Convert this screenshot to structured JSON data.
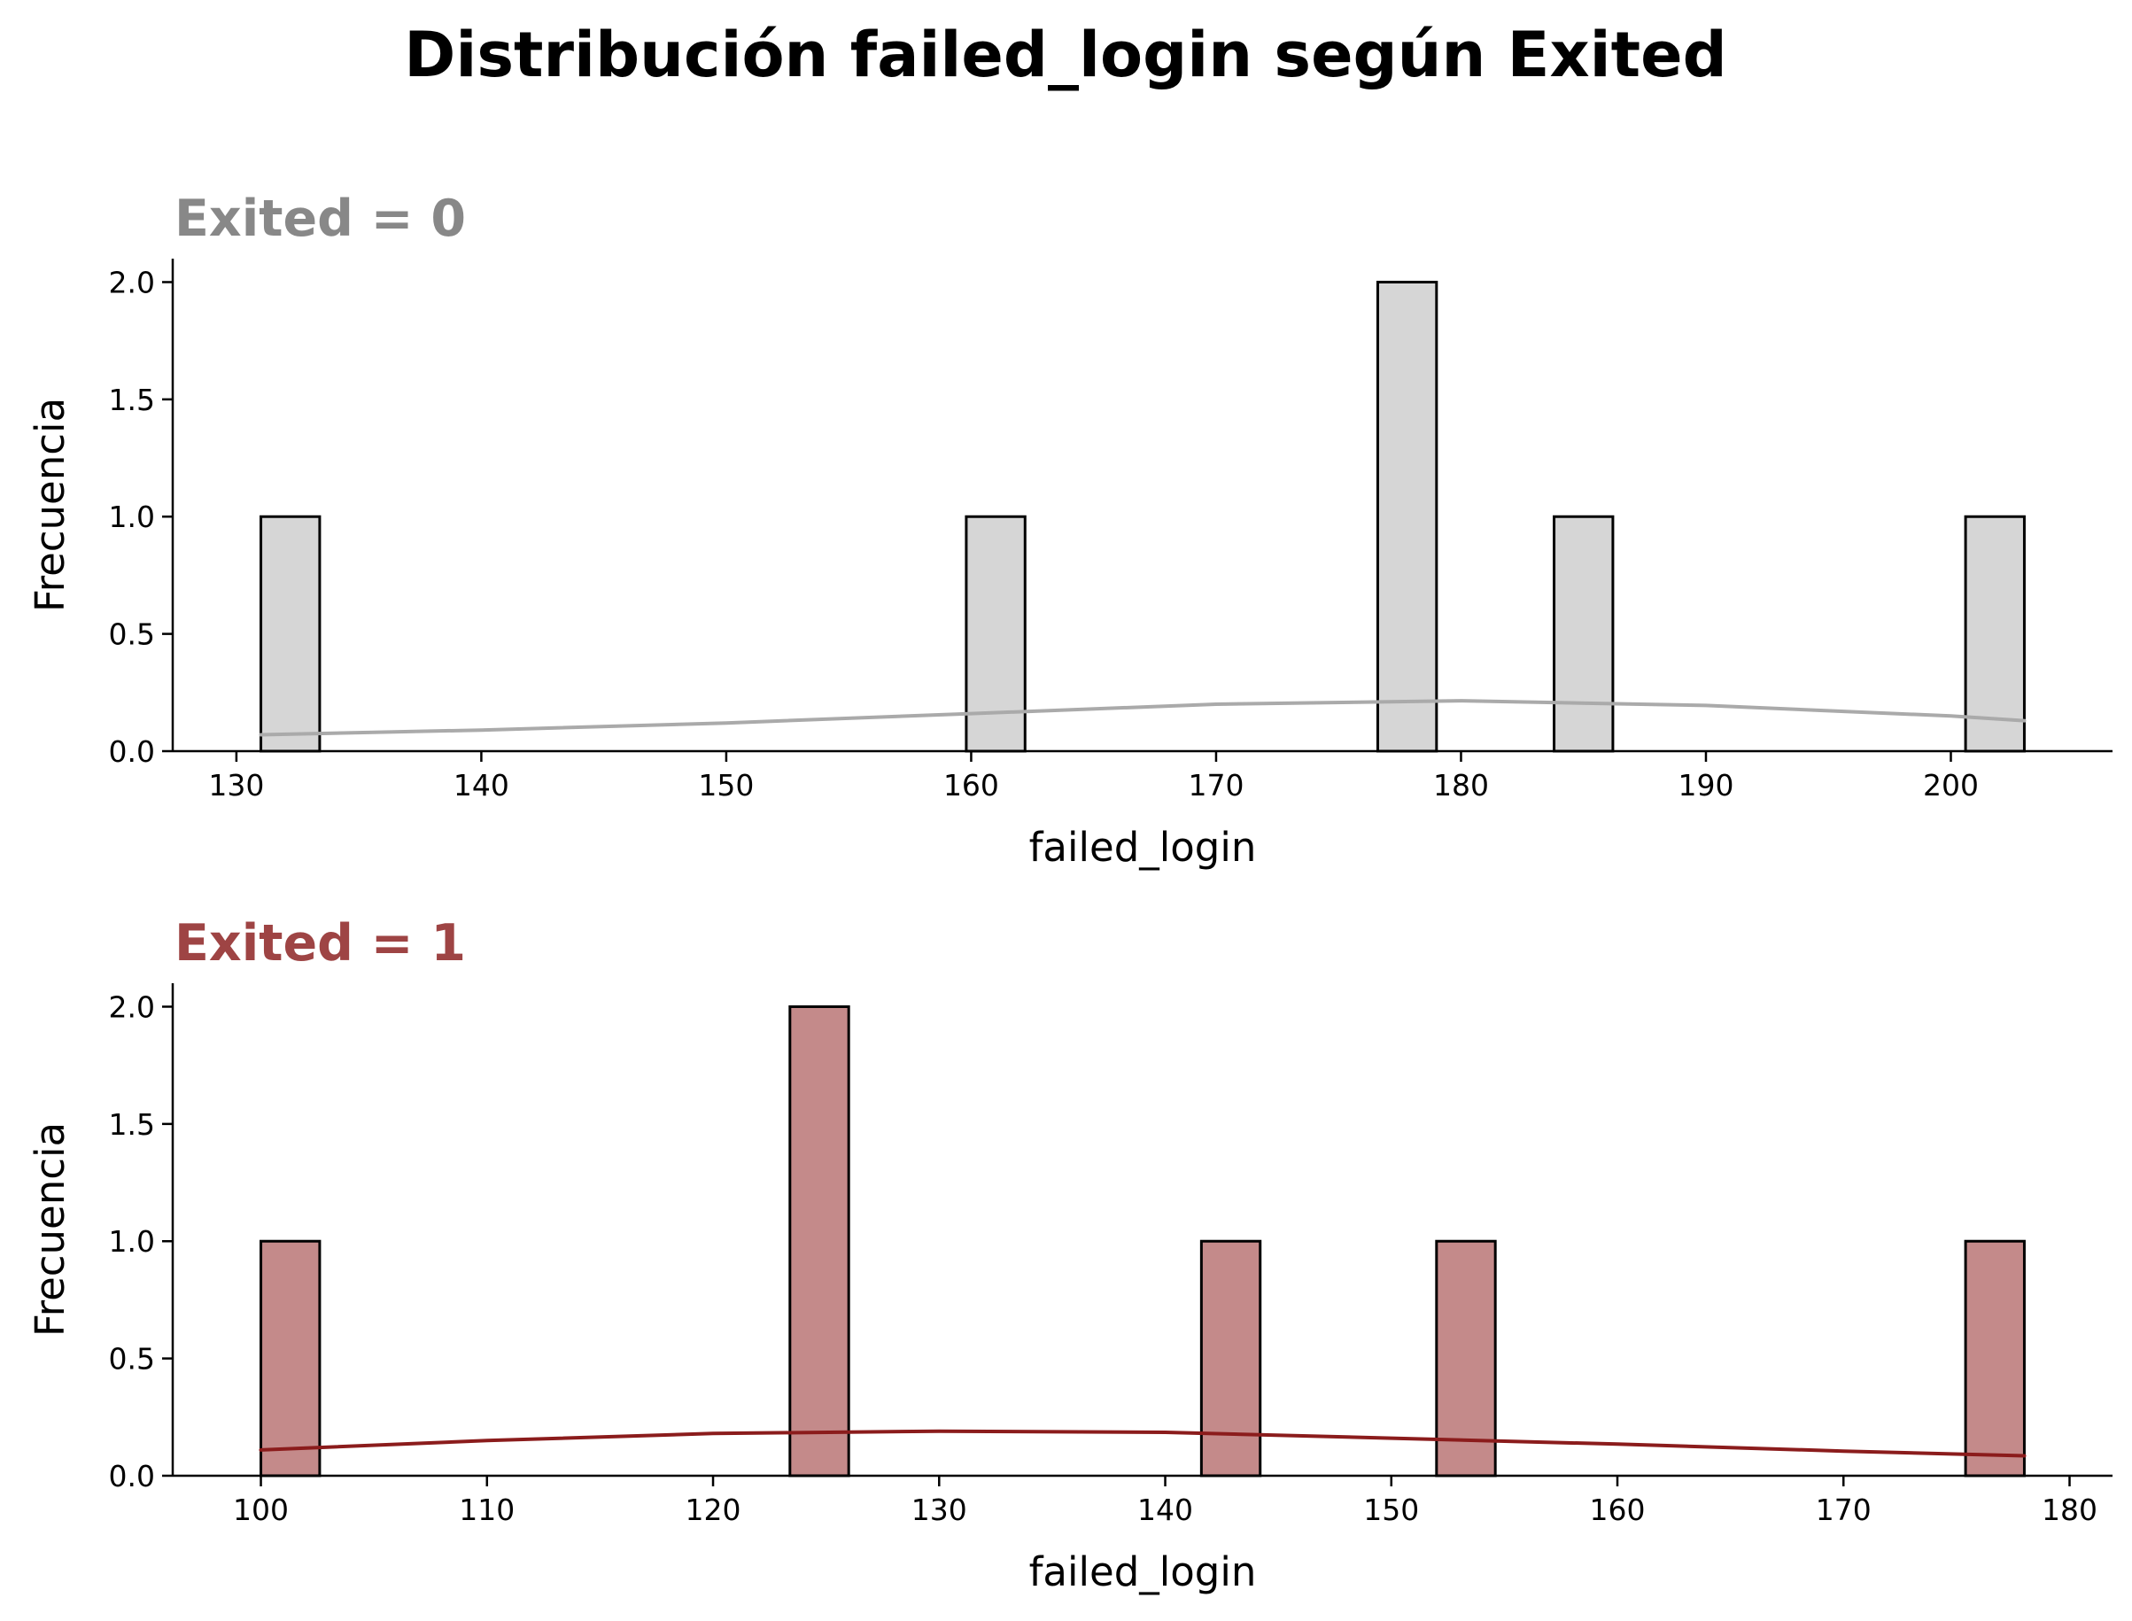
{
  "suptitle": "Distribución failed_login según Exited",
  "chart_data": [
    {
      "type": "bar",
      "title": "Exited = 0",
      "title_color": "#888888",
      "xlabel": "failed_login",
      "ylabel": "Frecuencia",
      "xlim": [
        127.4,
        206.6
      ],
      "ylim": [
        0,
        2.1
      ],
      "xticks": [
        "130",
        "140",
        "150",
        "160",
        "170",
        "180",
        "190",
        "200"
      ],
      "yticks": [
        "0.0",
        "0.5",
        "1.0",
        "1.5",
        "2.0"
      ],
      "bar_fill": "#d6d6d6",
      "bar_edge": "#000000",
      "kde_color": "#aaaaaa",
      "bins": [
        {
          "start": 131.0,
          "end": 133.4,
          "count": 1
        },
        {
          "start": 159.8,
          "end": 162.2,
          "count": 1
        },
        {
          "start": 176.6,
          "end": 179.0,
          "count": 2
        },
        {
          "start": 183.8,
          "end": 186.2,
          "count": 1
        },
        {
          "start": 200.6,
          "end": 203.0,
          "count": 1
        }
      ],
      "kde": {
        "x": [
          131,
          140,
          150,
          160,
          170,
          180,
          190,
          200,
          203
        ],
        "y": [
          0.07,
          0.09,
          0.12,
          0.16,
          0.2,
          0.215,
          0.195,
          0.15,
          0.13
        ]
      },
      "grid": false,
      "legend": "none"
    },
    {
      "type": "bar",
      "title": "Exited = 1",
      "title_color": "#9e4444",
      "xlabel": "failed_login",
      "ylabel": "Frecuencia",
      "xlim": [
        96.1,
        181.9
      ],
      "ylim": [
        0,
        2.1
      ],
      "xticks": [
        "100",
        "110",
        "120",
        "130",
        "140",
        "150",
        "160",
        "170",
        "180"
      ],
      "yticks": [
        "0.0",
        "0.5",
        "1.0",
        "1.5",
        "2.0"
      ],
      "bar_fill": "#c48a8a",
      "bar_edge": "#000000",
      "kde_color": "#8b1c1c",
      "bins": [
        {
          "start": 100.0,
          "end": 102.6,
          "count": 1
        },
        {
          "start": 123.4,
          "end": 126.0,
          "count": 2
        },
        {
          "start": 141.6,
          "end": 144.2,
          "count": 1
        },
        {
          "start": 152.0,
          "end": 154.6,
          "count": 1
        },
        {
          "start": 175.4,
          "end": 178.0,
          "count": 1
        }
      ],
      "kde": {
        "x": [
          100,
          110,
          120,
          130,
          140,
          150,
          160,
          170,
          178
        ],
        "y": [
          0.11,
          0.15,
          0.18,
          0.19,
          0.185,
          0.16,
          0.135,
          0.105,
          0.085
        ]
      },
      "grid": false,
      "legend": "none"
    }
  ]
}
